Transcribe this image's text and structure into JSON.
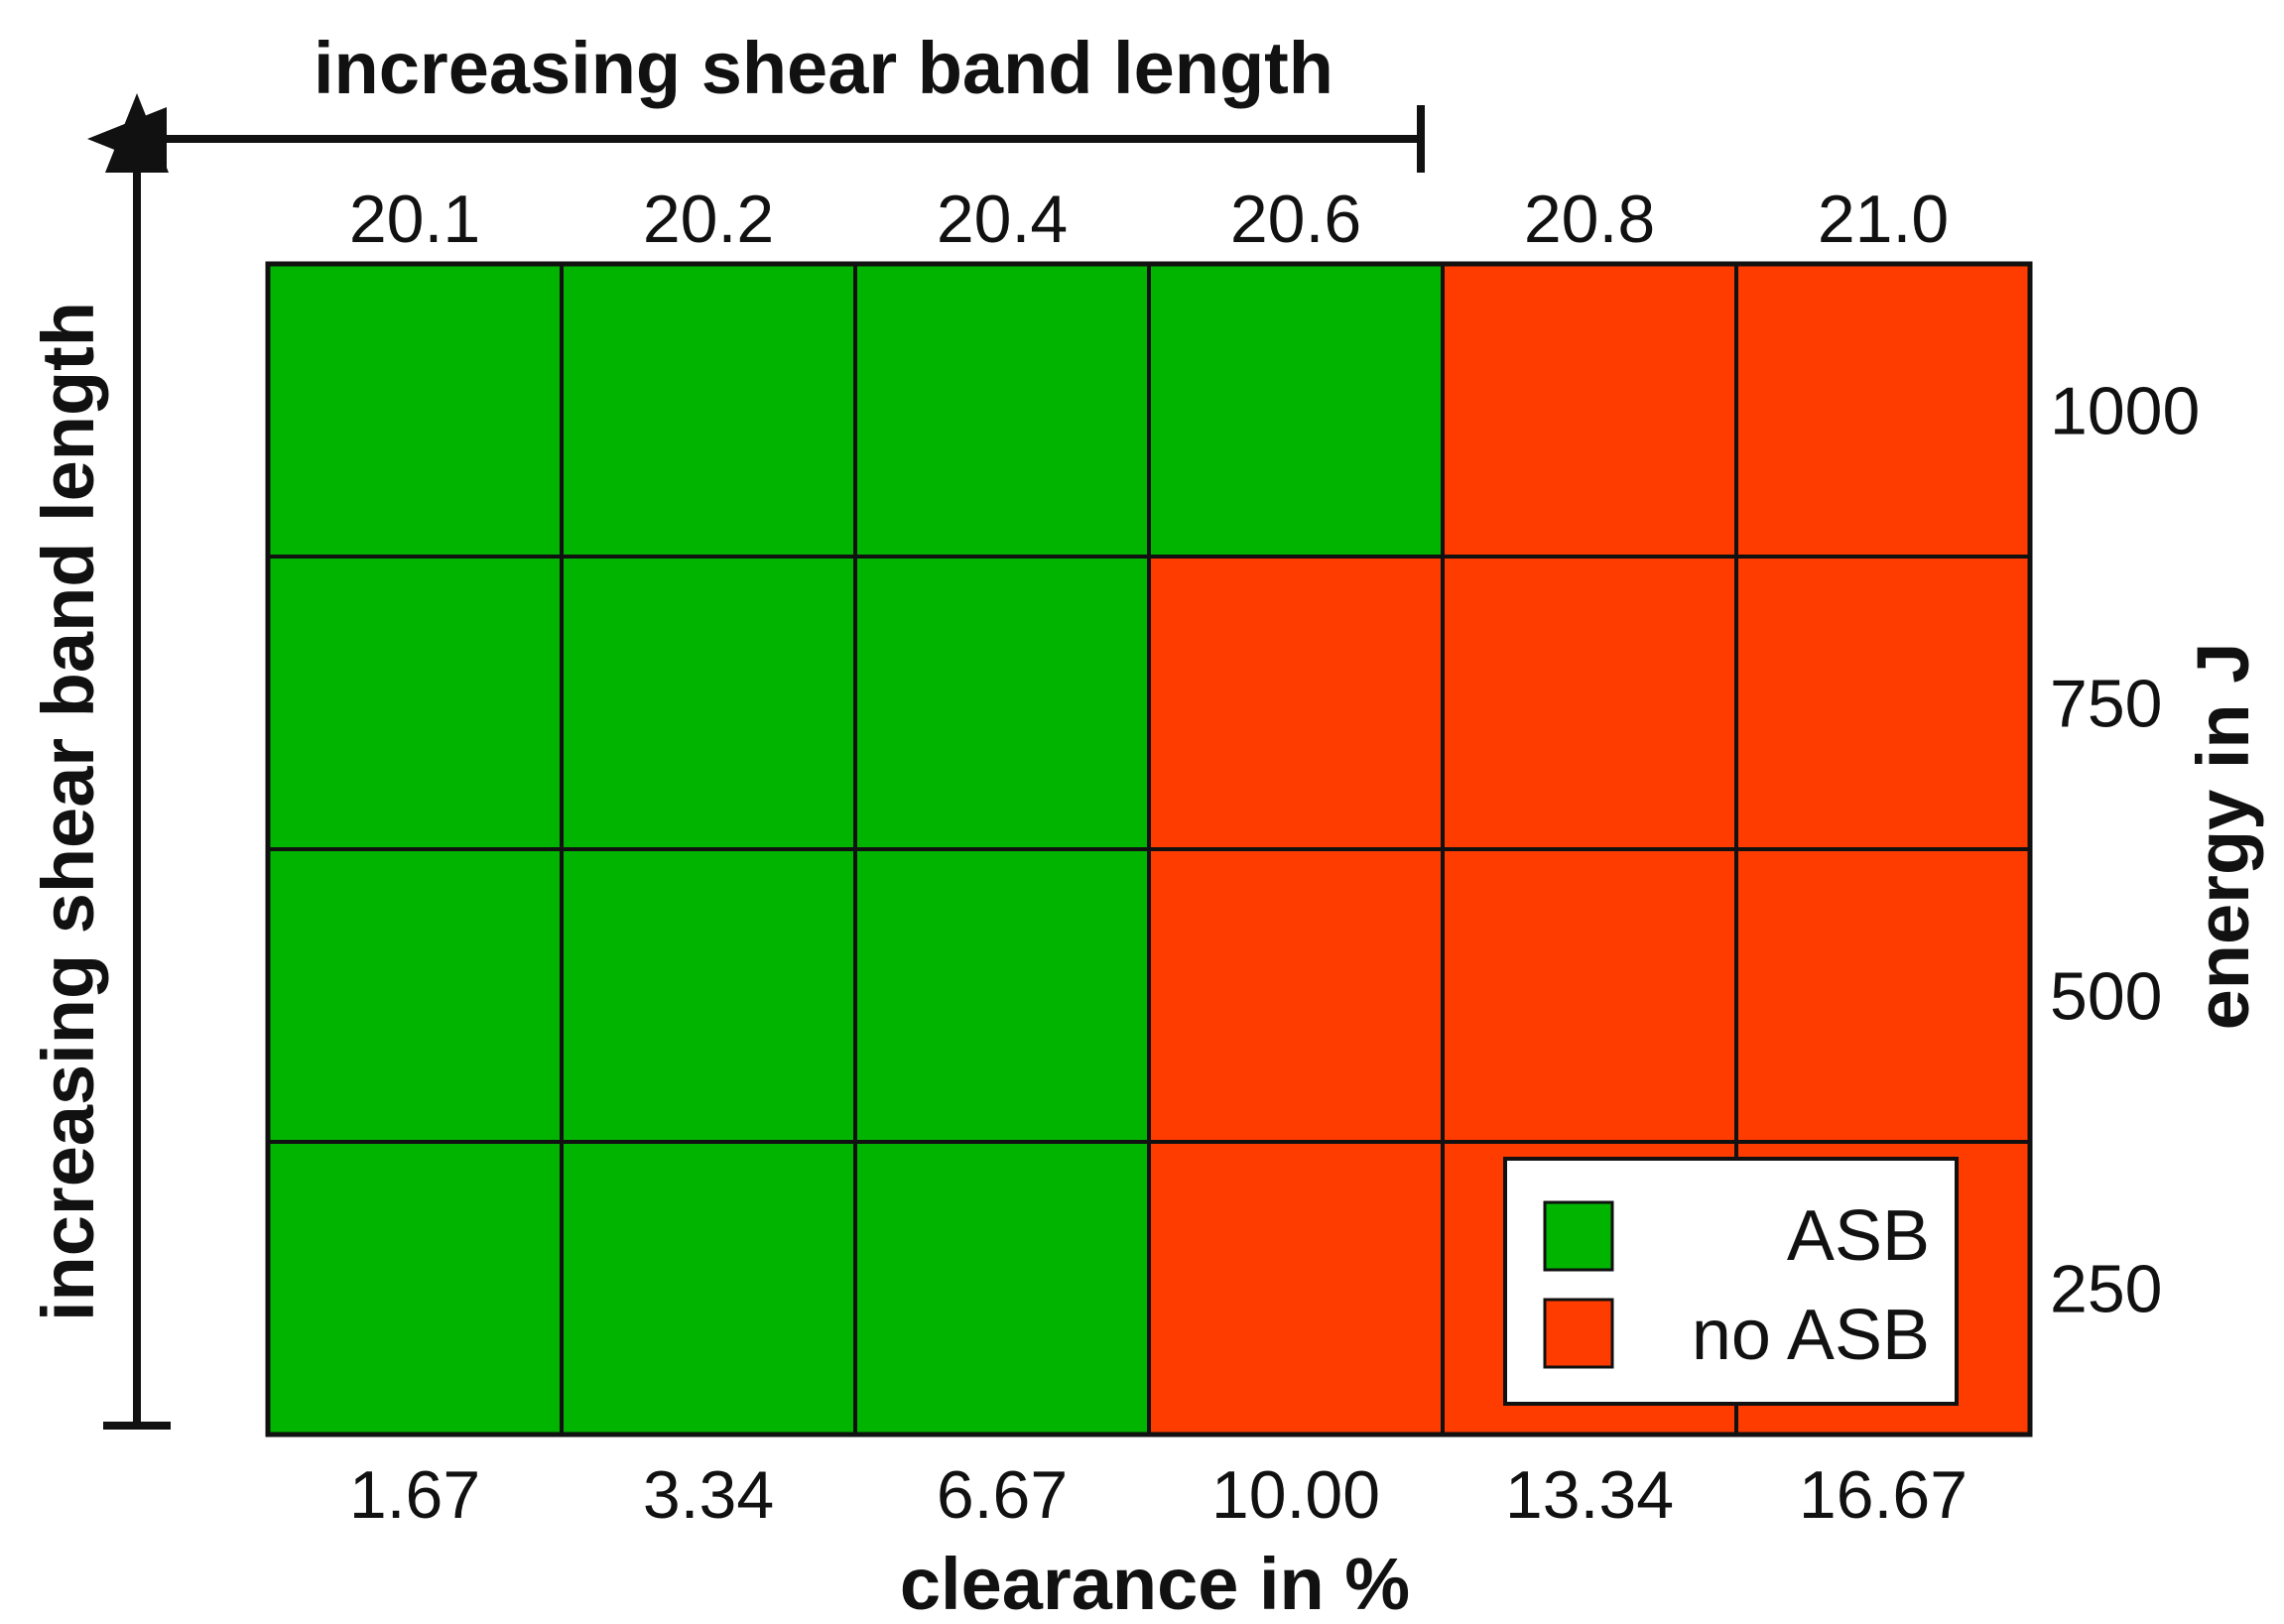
{
  "chart_data": {
    "type": "heatmap",
    "x_bottom_label": "clearance in %",
    "x_bottom_ticks": [
      "1.67",
      "3.34",
      "6.67",
      "10.00",
      "13.34",
      "16.67"
    ],
    "x_top_ticks": [
      "20.1",
      "20.2",
      "20.4",
      "20.6",
      "20.8",
      "21.0"
    ],
    "top_annotation": "increasing shear band length",
    "left_annotation": "increasing shear band length",
    "y_right_label": "energy in J",
    "y_ticks": [
      "1000",
      "750",
      "500",
      "250"
    ],
    "categories": [
      "ASB",
      "no ASB"
    ],
    "colors": {
      "ASB": "#00b400",
      "no ASB": "#ff3c00"
    },
    "grid": [
      [
        "ASB",
        "ASB",
        "ASB",
        "ASB",
        "no ASB",
        "no ASB"
      ],
      [
        "ASB",
        "ASB",
        "ASB",
        "no ASB",
        "no ASB",
        "no ASB"
      ],
      [
        "ASB",
        "ASB",
        "ASB",
        "no ASB",
        "no ASB",
        "no ASB"
      ],
      [
        "ASB",
        "ASB",
        "ASB",
        "no ASB",
        "no ASB",
        "no ASB"
      ]
    ],
    "legend": {
      "placement": "bottom-right",
      "entries": [
        {
          "label": "ASB",
          "color": "#00b400"
        },
        {
          "label": "no ASB",
          "color": "#ff3c00"
        }
      ]
    }
  }
}
